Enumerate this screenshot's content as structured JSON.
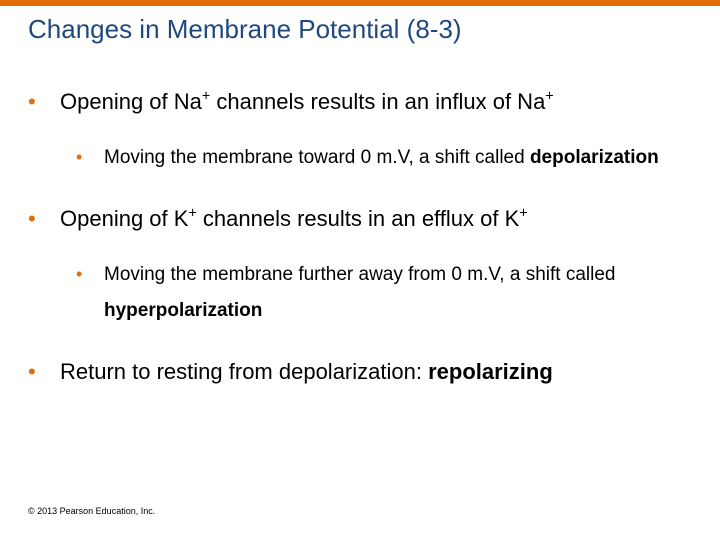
{
  "theme": {
    "accent": "#e36c0a",
    "title_color": "#1f497d",
    "bullet_color": "#e36c0a",
    "text_color": "#000000",
    "copyright_color": "#000000"
  },
  "title": "Changes in Membrane Potential (8-3)",
  "bullets": {
    "b1_pre": "Opening of Na",
    "b1_sup1": "+",
    "b1_mid": " channels results in an influx of Na",
    "b1_sup2": "+",
    "b1a_pre": "Moving the membrane toward 0 m.V, a shift called ",
    "b1a_bold": "depolarization",
    "b2_pre": "Opening of K",
    "b2_sup1": "+",
    "b2_mid": " channels results in an efflux of K",
    "b2_sup2": "+",
    "b2a_pre": "Moving the membrane further away from 0 m.V, a shift called ",
    "b2a_bold": "hyperpolarization",
    "b3_pre": "Return to resting from depolarization: ",
    "b3_bold": "repolarizing"
  },
  "copyright": "© 2013 Pearson Education, Inc."
}
